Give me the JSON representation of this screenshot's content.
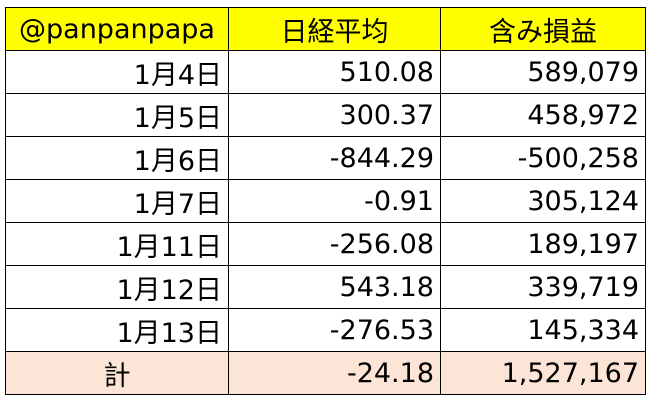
{
  "table": {
    "header": [
      "@panpanpapa",
      "日経平均",
      "含み損益"
    ],
    "rows": [
      [
        "1月4日",
        "510.08",
        "589,079"
      ],
      [
        "1月5日",
        "300.37",
        "458,972"
      ],
      [
        "1月6日",
        "-844.29",
        "-500,258"
      ],
      [
        "1月7日",
        "-0.91",
        "305,124"
      ],
      [
        "1月11日",
        "-256.08",
        "189,197"
      ],
      [
        "1月12日",
        "543.18",
        "339,719"
      ],
      [
        "1月13日",
        "-276.53",
        "145,334"
      ]
    ],
    "total": [
      "計",
      "-24.18",
      "1,527,167"
    ]
  }
}
